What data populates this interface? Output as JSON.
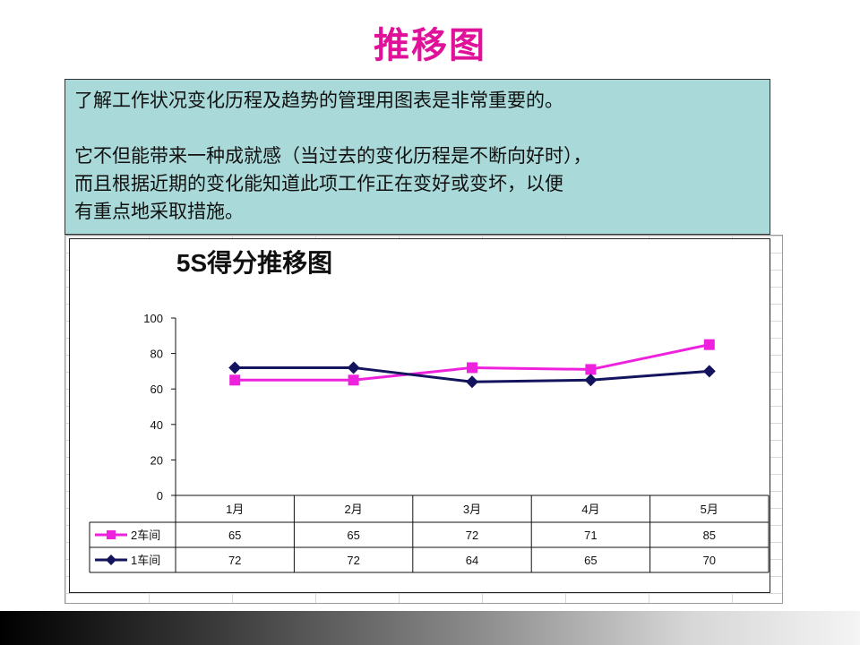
{
  "slide": {
    "title": "推移图",
    "note_lines": [
      "了解工作状况变化历程及趋势的管理用图表是非常重要的。",
      "它不但能带来一种成就感（当过去的变化历程是不断向好时），",
      "而且根据近期的变化能知道此项工作正在变好或变坏，以便",
      "有重点地采取措施。"
    ]
  },
  "colors": {
    "title": "#e0129a",
    "note_background": "#a9d9d9",
    "series_2": "#ee22dd",
    "series_1": "#14145e"
  },
  "chart_data": {
    "type": "line",
    "title": "5S得分推移图",
    "categories": [
      "1月",
      "2月",
      "3月",
      "4月",
      "5月"
    ],
    "series": [
      {
        "name": "2车间",
        "values": [
          65,
          65,
          72,
          71,
          85
        ],
        "color": "#ee22dd",
        "marker": "square"
      },
      {
        "name": "1车间",
        "values": [
          72,
          72,
          64,
          65,
          70
        ],
        "color": "#14145e",
        "marker": "diamond"
      }
    ],
    "ylim": [
      0,
      100
    ],
    "yticks": [
      0,
      20,
      40,
      60,
      80,
      100
    ],
    "grid": false,
    "legend": "data-table",
    "xlabel": "",
    "ylabel": ""
  }
}
